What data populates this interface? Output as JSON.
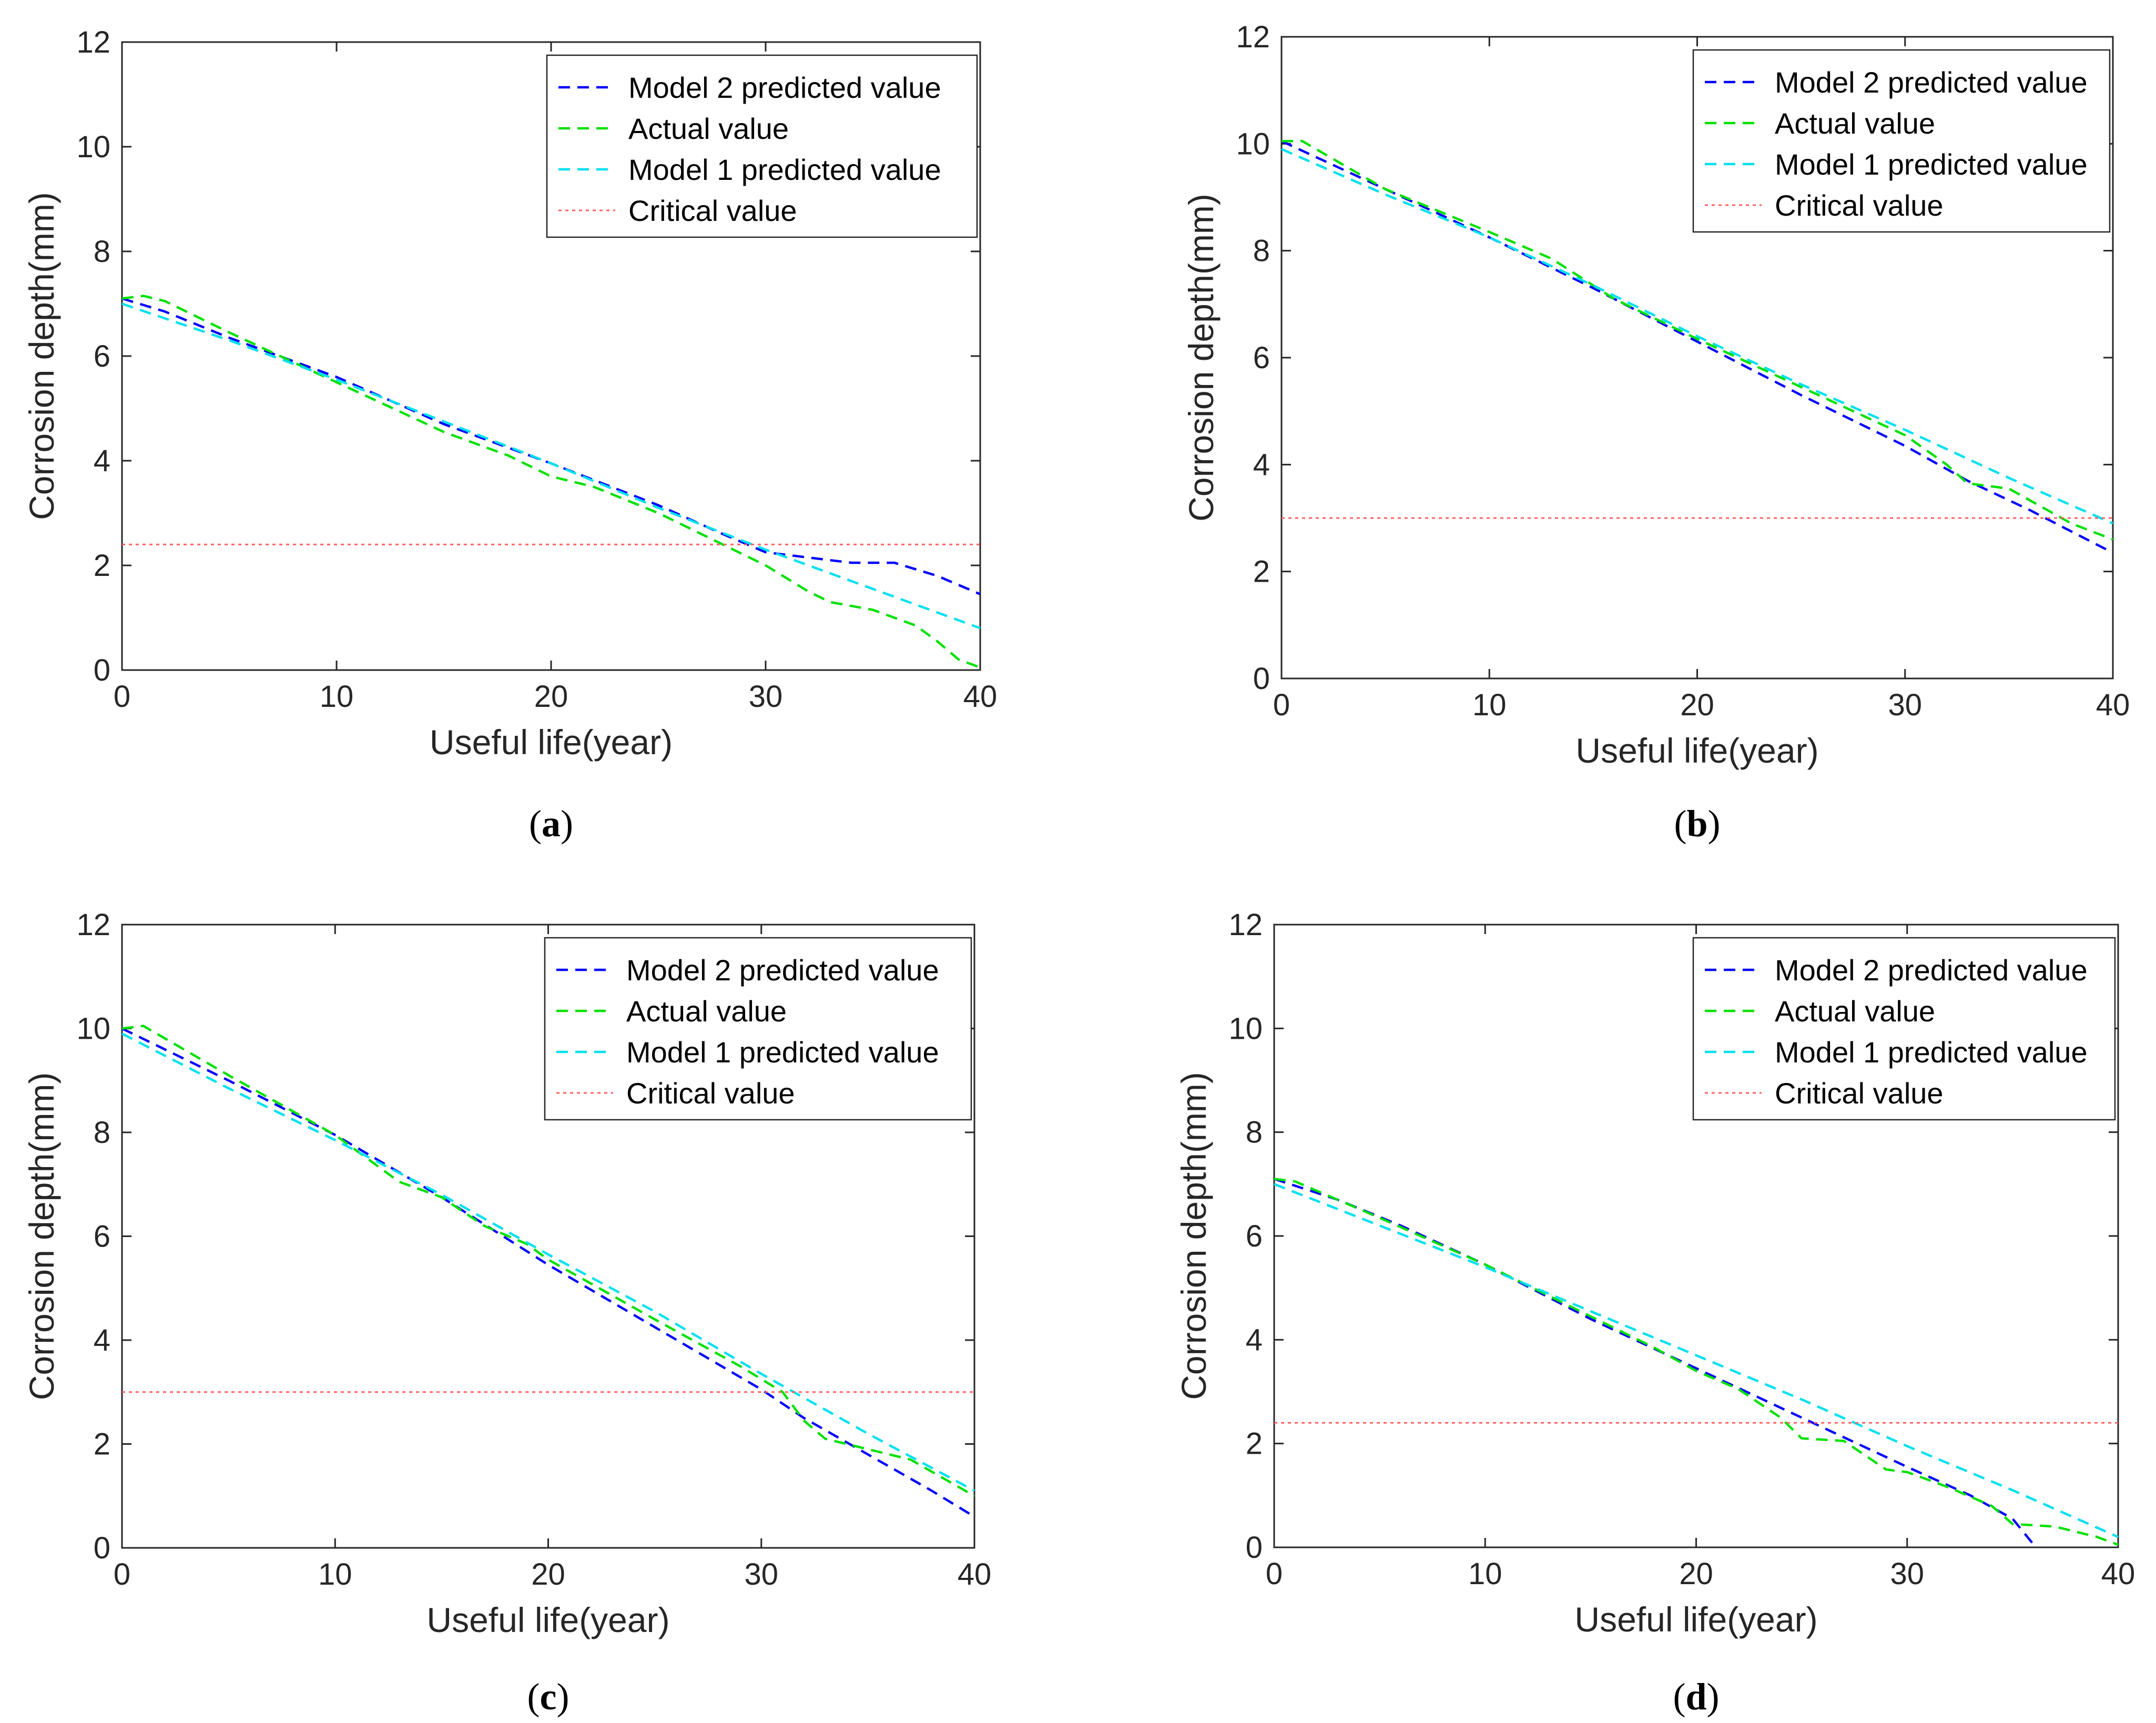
{
  "chart_data": [
    {
      "type": "line",
      "caption": "a",
      "xlabel": "Useful life(year)",
      "ylabel": "Corrosion depth(mm)",
      "xlim": [
        0,
        40
      ],
      "ylim": [
        0,
        12
      ],
      "xticks": [
        "0",
        "10",
        "20",
        "30",
        "40"
      ],
      "yticks": [
        "0",
        "2",
        "4",
        "6",
        "8",
        "10",
        "12"
      ],
      "legend_position": "top-right",
      "series": [
        {
          "name": "Model 2 predicted value",
          "color": "#0000ff",
          "style": "dashed",
          "x": [
            0,
            2,
            5,
            10,
            15,
            20,
            25,
            28,
            30,
            32,
            34,
            36,
            38,
            40
          ],
          "y": [
            7.1,
            6.85,
            6.35,
            5.6,
            4.7,
            3.95,
            3.15,
            2.6,
            2.25,
            2.15,
            2.05,
            2.05,
            1.8,
            1.45
          ]
        },
        {
          "name": "Actual value",
          "color": "#00e000",
          "style": "dashed",
          "x": [
            0,
            1,
            2,
            5,
            10,
            15,
            18,
            20,
            22,
            25,
            28,
            30,
            32,
            33,
            35,
            37,
            38,
            39,
            40
          ],
          "y": [
            7.1,
            7.15,
            7.05,
            6.45,
            5.5,
            4.55,
            4.1,
            3.7,
            3.5,
            3.0,
            2.4,
            2.0,
            1.5,
            1.3,
            1.15,
            0.85,
            0.55,
            0.2,
            0.05
          ]
        },
        {
          "name": "Model 1 predicted value",
          "color": "#00e0ee",
          "style": "dashed",
          "x": [
            0,
            5,
            10,
            15,
            20,
            25,
            30,
            35,
            40
          ],
          "y": [
            7.0,
            6.3,
            5.55,
            4.75,
            3.95,
            3.1,
            2.3,
            1.55,
            0.8
          ]
        },
        {
          "name": "Critical value",
          "color": "#ff6060",
          "style": "dotted",
          "x": [
            0,
            40
          ],
          "y": [
            2.4,
            2.4
          ]
        }
      ]
    },
    {
      "type": "line",
      "caption": "b",
      "xlabel": "Useful life(year)",
      "ylabel": "Corrosion depth(mm)",
      "xlim": [
        0,
        40
      ],
      "ylim": [
        0,
        12
      ],
      "xticks": [
        "0",
        "10",
        "20",
        "30",
        "40"
      ],
      "yticks": [
        "0",
        "2",
        "4",
        "6",
        "8",
        "10",
        "12"
      ],
      "legend_position": "top-right",
      "series": [
        {
          "name": "Model 2 predicted value",
          "color": "#0000ff",
          "style": "dashed",
          "x": [
            0,
            5,
            10,
            15,
            20,
            25,
            30,
            33,
            36,
            40
          ],
          "y": [
            10.05,
            9.15,
            8.25,
            7.3,
            6.3,
            5.3,
            4.35,
            3.7,
            3.15,
            2.35
          ]
        },
        {
          "name": "Actual value",
          "color": "#00e000",
          "style": "dashed",
          "x": [
            0,
            1,
            5,
            10,
            13,
            16,
            20,
            25,
            30,
            32,
            33,
            35,
            38,
            40
          ],
          "y": [
            10.05,
            10.05,
            9.15,
            8.35,
            7.85,
            7.1,
            6.35,
            5.45,
            4.55,
            4.0,
            3.65,
            3.55,
            2.9,
            2.6
          ]
        },
        {
          "name": "Model 1 predicted value",
          "color": "#00e0ee",
          "style": "dashed",
          "x": [
            0,
            5,
            10,
            15,
            20,
            25,
            30,
            35,
            40
          ],
          "y": [
            9.9,
            9.05,
            8.25,
            7.35,
            6.4,
            5.5,
            4.65,
            3.75,
            2.9
          ]
        },
        {
          "name": "Critical value",
          "color": "#ff6060",
          "style": "dotted",
          "x": [
            0,
            40
          ],
          "y": [
            3.0,
            3.0
          ]
        }
      ]
    },
    {
      "type": "line",
      "caption": "c",
      "xlabel": "Useful life(year)",
      "ylabel": "Corrosion depth(mm)",
      "xlim": [
        0,
        40
      ],
      "ylim": [
        0,
        12
      ],
      "xticks": [
        "0",
        "10",
        "20",
        "30",
        "40"
      ],
      "yticks": [
        "0",
        "2",
        "4",
        "6",
        "8",
        "10",
        "12"
      ],
      "legend_position": "top-right",
      "series": [
        {
          "name": "Model 2 predicted value",
          "color": "#0000ff",
          "style": "dashed",
          "x": [
            0,
            5,
            10,
            15,
            20,
            25,
            30,
            32,
            35,
            38,
            40
          ],
          "y": [
            10.0,
            9.0,
            7.95,
            6.75,
            5.45,
            4.25,
            3.05,
            2.5,
            1.8,
            1.1,
            0.6
          ]
        },
        {
          "name": "Actual value",
          "color": "#00e000",
          "style": "dashed",
          "x": [
            0,
            1,
            5,
            10,
            13,
            15,
            17,
            19,
            20,
            25,
            29,
            31,
            32,
            33,
            35,
            37,
            40
          ],
          "y": [
            10.0,
            10.05,
            9.1,
            7.95,
            7.05,
            6.75,
            6.2,
            5.85,
            5.55,
            4.4,
            3.5,
            3.0,
            2.45,
            2.1,
            1.9,
            1.7,
            1.0
          ]
        },
        {
          "name": "Model 1 predicted value",
          "color": "#00e0ee",
          "style": "dashed",
          "x": [
            0,
            5,
            10,
            15,
            20,
            25,
            30,
            35,
            40
          ],
          "y": [
            9.9,
            8.85,
            7.85,
            6.8,
            5.65,
            4.55,
            3.35,
            2.2,
            1.1
          ]
        },
        {
          "name": "Critical value",
          "color": "#ff6060",
          "style": "dotted",
          "x": [
            0,
            40
          ],
          "y": [
            3.0,
            3.0
          ]
        }
      ]
    },
    {
      "type": "line",
      "caption": "d",
      "xlabel": "Useful life(year)",
      "ylabel": "Corrosion depth(mm)",
      "xlim": [
        0,
        40
      ],
      "ylim": [
        0,
        12
      ],
      "xticks": [
        "0",
        "10",
        "20",
        "30",
        "40"
      ],
      "yticks": [
        "0",
        "2",
        "4",
        "6",
        "8",
        "10",
        "12"
      ],
      "legend_position": "top-right",
      "series": [
        {
          "name": "Model 2 predicted value",
          "color": "#0000ff",
          "style": "dashed",
          "x": [
            0,
            3,
            6,
            10,
            15,
            20,
            25,
            30,
            33,
            35,
            36
          ],
          "y": [
            7.1,
            6.7,
            6.2,
            5.45,
            4.4,
            3.45,
            2.5,
            1.55,
            1.0,
            0.55,
            0.05
          ]
        },
        {
          "name": "Actual value",
          "color": "#00e000",
          "style": "dashed",
          "x": [
            0,
            1,
            5,
            10,
            15,
            18,
            20,
            22,
            24,
            25,
            27,
            29,
            30,
            32,
            34,
            35,
            37,
            39,
            40
          ],
          "y": [
            7.1,
            7.05,
            6.35,
            5.45,
            4.45,
            3.85,
            3.4,
            3.05,
            2.5,
            2.1,
            2.05,
            1.5,
            1.45,
            1.15,
            0.8,
            0.45,
            0.4,
            0.2,
            0.05
          ]
        },
        {
          "name": "Model 1 predicted value",
          "color": "#00e0ee",
          "style": "dashed",
          "x": [
            0,
            5,
            10,
            15,
            20,
            25,
            30,
            35,
            40
          ],
          "y": [
            7.0,
            6.2,
            5.4,
            4.55,
            3.7,
            2.85,
            1.95,
            1.1,
            0.2
          ]
        },
        {
          "name": "Critical value",
          "color": "#ff6060",
          "style": "dotted",
          "x": [
            0,
            40
          ],
          "y": [
            2.4,
            2.4
          ]
        }
      ]
    }
  ]
}
